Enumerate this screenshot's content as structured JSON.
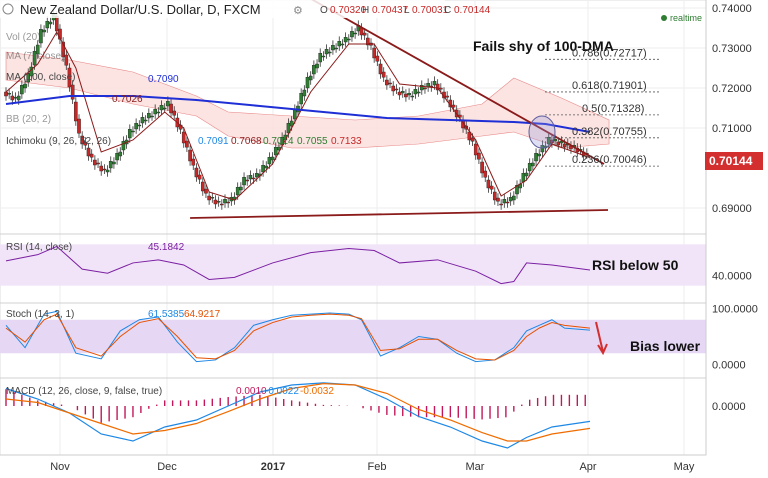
{
  "header": {
    "title": "New Zealand Dollar/U.S. Dollar, D, FXCM",
    "ohlc": {
      "o_label": "O",
      "o": "0.70320",
      "h_label": "H",
      "h": "0.70437",
      "l_label": "L",
      "l": "0.70031",
      "c_label": "C",
      "c": "0.70144"
    },
    "realtime": "realtime"
  },
  "colors": {
    "up": "#2e7d32",
    "down": "#c62828",
    "dma": "#1f2fd6",
    "trend": "#8b1a1a",
    "rsi": "#7b1fa2",
    "stoch_k": "#1e88e5",
    "stoch_d": "#e65100",
    "macd": "#1e88e5",
    "signal": "#ef6c00",
    "hist": "#c2185b",
    "price_tag": "#d32f2f",
    "cloud_up": "#e8f5e0",
    "cloud_down": "#fbe0de"
  },
  "indicators": {
    "vol": "Vol (20)",
    "ma7": "MA (7, close)",
    "ma100": "MA (100, close)",
    "bb": "BB (20, 2)",
    "ichimoku": "Ichimoku (9, 26, 52, 26)",
    "ma100_val": "0.7090",
    "ma7_val": "0.7026",
    "ichi_vals": [
      "0.7091",
      "0.7068",
      "0.7014",
      "0.7055",
      "0.7133"
    ],
    "rsi_label": "RSI (14, close)",
    "rsi_val": "45.1842",
    "stoch_label": "Stoch (14, 3, 1)",
    "stoch_vals": [
      "61.5385",
      "64.9217"
    ],
    "macd_label": "MACD (12, 26, close, 9, false, true)",
    "macd_vals": [
      "0.0010",
      "-0.0022",
      "-0.0032"
    ]
  },
  "annotations": {
    "title": "Fails shy of 100-DMA",
    "rsi": "RSI below 50",
    "stoch": "Bias lower"
  },
  "fib_levels": [
    {
      "label": "0.786(0.72717)",
      "value": 0.72717
    },
    {
      "label": "0.618(0.71901)",
      "value": 0.71901
    },
    {
      "label": "0.5(0.71328)",
      "value": 0.71328
    },
    {
      "label": "0.382(0.70755)",
      "value": 0.70755
    },
    {
      "label": "0.236(0.70046)",
      "value": 0.70046
    }
  ],
  "price_tag": "0.70144",
  "chart_data": {
    "type": "candlestick",
    "title": "New Zealand Dollar/U.S. Dollar, D, FXCM",
    "x_ticks": [
      "Nov",
      "Dec",
      "2017",
      "Feb",
      "Mar",
      "Apr",
      "May"
    ],
    "y_ticks": [
      "0.74000",
      "0.73000",
      "0.72000",
      "0.71000",
      "0.69000"
    ],
    "ylim": [
      0.684,
      0.742
    ],
    "price_path": [
      [
        0,
        0.719
      ],
      [
        4,
        0.717
      ],
      [
        8,
        0.723
      ],
      [
        12,
        0.734
      ],
      [
        16,
        0.738
      ],
      [
        20,
        0.725
      ],
      [
        24,
        0.708
      ],
      [
        28,
        0.702
      ],
      [
        32,
        0.699
      ],
      [
        36,
        0.703
      ],
      [
        40,
        0.709
      ],
      [
        44,
        0.712
      ],
      [
        48,
        0.714
      ],
      [
        52,
        0.716
      ],
      [
        56,
        0.709
      ],
      [
        60,
        0.7
      ],
      [
        64,
        0.693
      ],
      [
        68,
        0.691
      ],
      [
        72,
        0.692
      ],
      [
        76,
        0.697
      ],
      [
        80,
        0.698
      ],
      [
        84,
        0.702
      ],
      [
        88,
        0.707
      ],
      [
        92,
        0.714
      ],
      [
        96,
        0.722
      ],
      [
        100,
        0.728
      ],
      [
        104,
        0.73
      ],
      [
        108,
        0.732
      ],
      [
        112,
        0.735
      ],
      [
        116,
        0.73
      ],
      [
        120,
        0.722
      ],
      [
        124,
        0.719
      ],
      [
        128,
        0.718
      ],
      [
        132,
        0.72
      ],
      [
        136,
        0.721
      ],
      [
        140,
        0.717
      ],
      [
        144,
        0.712
      ],
      [
        148,
        0.706
      ],
      [
        152,
        0.697
      ],
      [
        156,
        0.691
      ],
      [
        160,
        0.692
      ],
      [
        164,
        0.698
      ],
      [
        168,
        0.703
      ],
      [
        172,
        0.707
      ],
      [
        176,
        0.706
      ],
      [
        180,
        0.705
      ],
      [
        184,
        0.703
      ]
    ],
    "ma100_path": [
      [
        0,
        0.716
      ],
      [
        20,
        0.718
      ],
      [
        40,
        0.718
      ],
      [
        60,
        0.717
      ],
      [
        80,
        0.7155
      ],
      [
        100,
        0.714
      ],
      [
        120,
        0.7125
      ],
      [
        140,
        0.712
      ],
      [
        160,
        0.7115
      ],
      [
        170,
        0.711
      ],
      [
        184,
        0.709
      ]
    ],
    "ma7_path": [
      [
        0,
        0.719
      ],
      [
        10,
        0.726
      ],
      [
        16,
        0.734
      ],
      [
        22,
        0.725
      ],
      [
        30,
        0.704
      ],
      [
        40,
        0.707
      ],
      [
        50,
        0.714
      ],
      [
        56,
        0.71
      ],
      [
        64,
        0.694
      ],
      [
        72,
        0.692
      ],
      [
        84,
        0.701
      ],
      [
        96,
        0.719
      ],
      [
        108,
        0.731
      ],
      [
        116,
        0.731
      ],
      [
        124,
        0.721
      ],
      [
        136,
        0.72
      ],
      [
        148,
        0.707
      ],
      [
        156,
        0.693
      ],
      [
        164,
        0.697
      ],
      [
        172,
        0.706
      ],
      [
        184,
        0.7026
      ]
    ],
    "upper_trend": {
      "from": [
        90,
        0.745
      ],
      "to": [
        184,
        0.703
      ]
    },
    "lower_trend": {
      "from": [
        58,
        0.6875
      ],
      "to": [
        190,
        0.6895
      ]
    },
    "rsi": {
      "ylim": [
        20,
        80
      ],
      "level": 40,
      "y_tick": "40.0000",
      "path": [
        [
          0,
          54
        ],
        [
          10,
          60
        ],
        [
          16,
          68
        ],
        [
          24,
          46
        ],
        [
          32,
          42
        ],
        [
          40,
          52
        ],
        [
          48,
          55
        ],
        [
          56,
          50
        ],
        [
          64,
          36
        ],
        [
          72,
          38
        ],
        [
          84,
          52
        ],
        [
          96,
          62
        ],
        [
          108,
          66
        ],
        [
          116,
          64
        ],
        [
          124,
          52
        ],
        [
          136,
          55
        ],
        [
          148,
          44
        ],
        [
          156,
          32
        ],
        [
          160,
          34
        ],
        [
          164,
          52
        ],
        [
          172,
          50
        ],
        [
          184,
          45.2
        ]
      ]
    },
    "stoch": {
      "ylim": [
        -10,
        110
      ],
      "y_ticks": [
        "100.0000",
        "0.0000"
      ],
      "band": [
        20,
        80
      ],
      "k_path": [
        [
          0,
          70
        ],
        [
          6,
          30
        ],
        [
          12,
          90
        ],
        [
          16,
          95
        ],
        [
          22,
          20
        ],
        [
          30,
          10
        ],
        [
          36,
          60
        ],
        [
          42,
          80
        ],
        [
          48,
          85
        ],
        [
          54,
          40
        ],
        [
          60,
          5
        ],
        [
          66,
          8
        ],
        [
          72,
          30
        ],
        [
          78,
          70
        ],
        [
          84,
          80
        ],
        [
          90,
          88
        ],
        [
          96,
          90
        ],
        [
          102,
          92
        ],
        [
          108,
          90
        ],
        [
          112,
          80
        ],
        [
          118,
          15
        ],
        [
          124,
          30
        ],
        [
          130,
          50
        ],
        [
          136,
          45
        ],
        [
          142,
          20
        ],
        [
          148,
          5
        ],
        [
          154,
          8
        ],
        [
          160,
          30
        ],
        [
          164,
          60
        ],
        [
          168,
          70
        ],
        [
          172,
          80
        ],
        [
          176,
          65
        ],
        [
          184,
          61.5
        ]
      ],
      "d_path": [
        [
          0,
          65
        ],
        [
          6,
          40
        ],
        [
          12,
          80
        ],
        [
          16,
          90
        ],
        [
          22,
          30
        ],
        [
          30,
          15
        ],
        [
          36,
          50
        ],
        [
          42,
          75
        ],
        [
          48,
          82
        ],
        [
          54,
          50
        ],
        [
          60,
          12
        ],
        [
          66,
          10
        ],
        [
          72,
          25
        ],
        [
          78,
          60
        ],
        [
          84,
          75
        ],
        [
          90,
          85
        ],
        [
          96,
          88
        ],
        [
          102,
          90
        ],
        [
          108,
          88
        ],
        [
          112,
          82
        ],
        [
          118,
          25
        ],
        [
          124,
          28
        ],
        [
          130,
          45
        ],
        [
          136,
          45
        ],
        [
          142,
          25
        ],
        [
          148,
          10
        ],
        [
          154,
          8
        ],
        [
          160,
          25
        ],
        [
          164,
          50
        ],
        [
          168,
          65
        ],
        [
          172,
          75
        ],
        [
          176,
          70
        ],
        [
          184,
          64.9
        ]
      ]
    },
    "macd": {
      "ylim": [
        -0.007,
        0.004
      ],
      "y_tick": "0.0000",
      "macd_path": [
        [
          0,
          0.0025
        ],
        [
          10,
          0.001
        ],
        [
          20,
          -0.001
        ],
        [
          30,
          -0.004
        ],
        [
          40,
          -0.005
        ],
        [
          50,
          -0.003
        ],
        [
          60,
          -0.002
        ],
        [
          70,
          0.0
        ],
        [
          80,
          0.002
        ],
        [
          90,
          0.003
        ],
        [
          100,
          0.0033
        ],
        [
          110,
          0.003
        ],
        [
          120,
          0.001
        ],
        [
          130,
          -0.0015
        ],
        [
          140,
          -0.003
        ],
        [
          150,
          -0.005
        ],
        [
          158,
          -0.006
        ],
        [
          164,
          -0.0045
        ],
        [
          172,
          -0.003
        ],
        [
          184,
          -0.0022
        ]
      ],
      "signal_path": [
        [
          0,
          0.001
        ],
        [
          10,
          0.0005
        ],
        [
          20,
          -0.001
        ],
        [
          30,
          -0.0025
        ],
        [
          40,
          -0.004
        ],
        [
          50,
          -0.0035
        ],
        [
          60,
          -0.0025
        ],
        [
          70,
          -0.0008
        ],
        [
          80,
          0.001
        ],
        [
          90,
          0.0025
        ],
        [
          100,
          0.0032
        ],
        [
          110,
          0.003
        ],
        [
          120,
          0.0018
        ],
        [
          130,
          -0.0005
        ],
        [
          140,
          -0.002
        ],
        [
          150,
          -0.0038
        ],
        [
          158,
          -0.005
        ],
        [
          164,
          -0.005
        ],
        [
          172,
          -0.004
        ],
        [
          184,
          -0.0032
        ]
      ]
    }
  }
}
